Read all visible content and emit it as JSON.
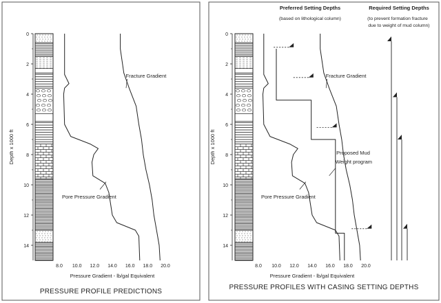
{
  "left": {
    "caption": "PRESSURE PROFILE PREDICTIONS",
    "ylabel": "Depth x 1000 ft",
    "xlabel": "Pressure Gradient - lb/gal Equivalent",
    "fracture_label": "Fracture Gradient",
    "pore_label": "Pore Pressure Gradient",
    "y_ticks": [
      "0",
      "2",
      "4",
      "6",
      "8",
      "10",
      "12",
      "14"
    ],
    "x_ticks": [
      "8.0",
      "10.0",
      "12.0",
      "14.0",
      "16.0",
      "18.0",
      "20.0"
    ]
  },
  "right": {
    "caption": "PRESSURE PROFILES WITH CASING SETTING DEPTHS",
    "ylabel": "Depth x 1000 ft",
    "xlabel": "Pressure Gradient - lb/gal Equivalent",
    "fracture_label": "Fracture Gradient",
    "pore_label": "Pore Pressure Gradient",
    "mud_label_line1": "Proposed Mud",
    "mud_label_line2": "Weight program",
    "preferred_title": "Preferred Setting Depths",
    "preferred_note": "(based on lithological column)",
    "required_title": "Required Setting Depths",
    "required_note_line1": "(to prevent formation fracture",
    "required_note_line2": "due to weight of mud column)",
    "y_ticks": [
      "0",
      "2",
      "4",
      "6",
      "8",
      "10",
      "12",
      "14"
    ],
    "x_ticks": [
      "8.0",
      "10.0",
      "12.0",
      "14.0",
      "16.0",
      "18.0",
      "20.0"
    ]
  },
  "chart_data": [
    {
      "type": "line",
      "title": "PRESSURE PROFILE PREDICTIONS",
      "xlabel": "Pressure Gradient - lb/gal Equivalent",
      "ylabel": "Depth x 1000 ft",
      "xlim": [
        8.0,
        20.0
      ],
      "ylim": [
        0,
        15
      ],
      "y_inverted": true,
      "series": [
        {
          "name": "Fracture Gradient",
          "points": [
            [
              14.9,
              0
            ],
            [
              14.9,
              1
            ],
            [
              15.3,
              2.6
            ],
            [
              15.9,
              3.6
            ],
            [
              16.7,
              4.8
            ],
            [
              17.0,
              6
            ],
            [
              17.3,
              7
            ],
            [
              17.5,
              8
            ],
            [
              17.8,
              9
            ],
            [
              18.2,
              10
            ],
            [
              18.5,
              11
            ],
            [
              18.7,
              12
            ],
            [
              19.0,
              13
            ],
            [
              19.3,
              14
            ],
            [
              19.4,
              15
            ]
          ]
        },
        {
          "name": "Pore Pressure Gradient",
          "points": [
            [
              8.6,
              0
            ],
            [
              8.6,
              2.7
            ],
            [
              9.1,
              3.3
            ],
            [
              8.6,
              3.6
            ],
            [
              8.5,
              4
            ],
            [
              8.6,
              6
            ],
            [
              9.3,
              6.8
            ],
            [
              11.5,
              7.3
            ],
            [
              12.4,
              7.6
            ],
            [
              11.9,
              8
            ],
            [
              11.7,
              8.5
            ],
            [
              11.8,
              9.4
            ],
            [
              13.2,
              9.9
            ],
            [
              13.6,
              10.5
            ],
            [
              14.0,
              12
            ],
            [
              14.5,
              12.5
            ],
            [
              16.6,
              13.0
            ],
            [
              17.0,
              13.4
            ],
            [
              17.1,
              15
            ]
          ]
        }
      ]
    },
    {
      "type": "line",
      "title": "PRESSURE PROFILES WITH CASING SETTING DEPTHS",
      "xlabel": "Pressure Gradient - lb/gal Equivalent",
      "ylabel": "Depth x 1000 ft",
      "xlim": [
        8.0,
        20.0
      ],
      "ylim": [
        0,
        15
      ],
      "y_inverted": true,
      "series": [
        {
          "name": "Fracture Gradient",
          "points": [
            [
              14.9,
              0
            ],
            [
              14.9,
              1
            ],
            [
              15.3,
              2.6
            ],
            [
              15.9,
              3.6
            ],
            [
              16.7,
              4.8
            ],
            [
              17.0,
              6
            ],
            [
              17.3,
              7
            ],
            [
              17.5,
              8
            ],
            [
              17.8,
              9
            ],
            [
              18.2,
              10
            ],
            [
              18.5,
              11
            ],
            [
              18.7,
              12
            ],
            [
              19.0,
              13
            ],
            [
              19.3,
              14
            ],
            [
              19.4,
              15
            ]
          ]
        },
        {
          "name": "Pore Pressure Gradient",
          "points": [
            [
              8.6,
              0
            ],
            [
              8.6,
              2.7
            ],
            [
              9.1,
              3.3
            ],
            [
              8.6,
              3.6
            ],
            [
              8.5,
              4
            ],
            [
              8.6,
              6
            ],
            [
              9.3,
              6.8
            ],
            [
              11.5,
              7.3
            ],
            [
              12.4,
              7.6
            ],
            [
              11.9,
              8
            ],
            [
              11.7,
              8.5
            ],
            [
              11.8,
              9.4
            ],
            [
              13.2,
              9.9
            ],
            [
              13.6,
              10.5
            ],
            [
              14.0,
              12
            ],
            [
              14.5,
              12.5
            ],
            [
              16.6,
              13.0
            ],
            [
              17.0,
              13.4
            ],
            [
              17.1,
              15
            ]
          ]
        },
        {
          "name": "Proposed Mud Weight program",
          "points": [
            [
              10.0,
              1
            ],
            [
              10.0,
              4.4
            ],
            [
              13.9,
              4.4
            ],
            [
              13.9,
              7.0
            ],
            [
              16.6,
              7.0
            ],
            [
              16.6,
              13.2
            ],
            [
              17.6,
              13.2
            ],
            [
              17.6,
              15
            ]
          ]
        }
      ],
      "preferred_setting_depths": [
        0.9,
        2.9,
        6.2,
        12.9
      ],
      "required_setting_depths": [
        0.5,
        4.2,
        7.0,
        12.9
      ]
    }
  ]
}
